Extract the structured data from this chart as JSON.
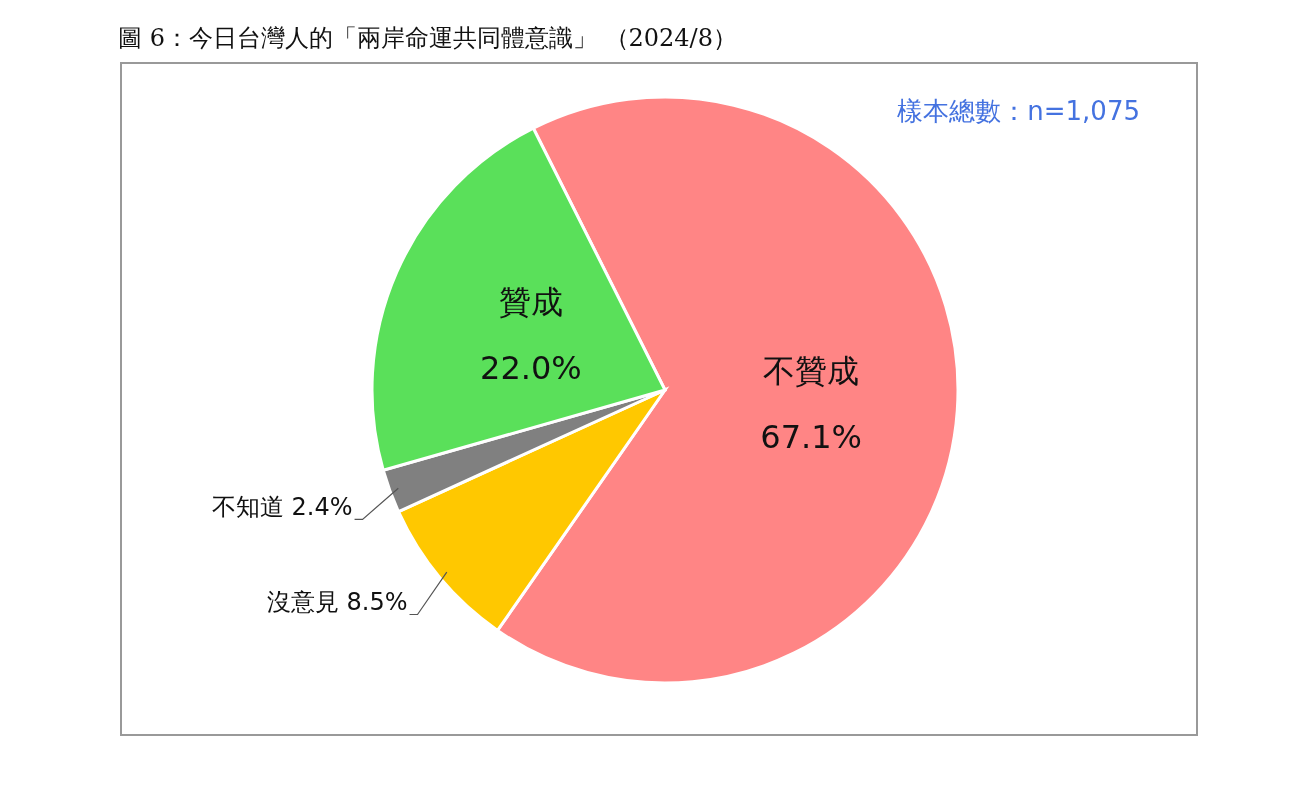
{
  "chart_data": {
    "type": "pie",
    "title": "圖 6：今日台灣人的「兩岸命運共同體意識」 （2024/8）",
    "categories": [
      "不贊成",
      "沒意見",
      "不知道",
      "贊成"
    ],
    "values": [
      67.1,
      8.5,
      2.4,
      22.0
    ],
    "value_labels": [
      "67.1%",
      "8.5%",
      "2.4%",
      "22.0%"
    ],
    "colors": [
      "#ff8585",
      "#ffc800",
      "#808080",
      "#5ae05a"
    ],
    "annotations": [
      "樣本總數：n=1,075"
    ]
  }
}
